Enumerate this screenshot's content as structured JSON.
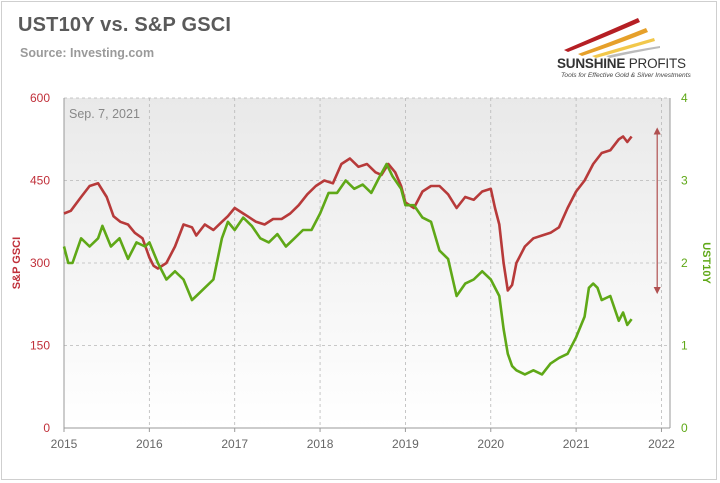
{
  "header": {
    "title": "UST10Y vs. S&P GSCI",
    "source": "Source: Investing.com",
    "logo_name_bold": "SUNSHINE",
    "logo_name_light": " PROFITS",
    "logo_tagline": "Tools for Effective Gold & Silver Investments"
  },
  "colors": {
    "gsci": "#b73a3a",
    "ust10y": "#5fa817",
    "arrow": "#b05050",
    "grid": "#b8b8b8",
    "left_axis_text": "#c0303a",
    "right_axis_text": "#5fa817"
  },
  "chart_data": {
    "type": "line",
    "annotation": "Sep. 7, 2021",
    "xlabel": "",
    "x_ticks": [
      "2015",
      "2016",
      "2017",
      "2018",
      "2019",
      "2020",
      "2021",
      "2022"
    ],
    "xlim": [
      2015,
      2022.1
    ],
    "y_left": {
      "label": "S&P GSCI",
      "ticks": [
        "0",
        "150",
        "300",
        "450",
        "600"
      ],
      "ylim": [
        0,
        600
      ]
    },
    "y_right": {
      "label": "UST10Y",
      "ticks": [
        "0",
        "1",
        "2",
        "3",
        "4"
      ],
      "ylim": [
        0,
        4
      ]
    },
    "grid": true,
    "arrow": {
      "x": 2021.95,
      "from": 540,
      "to": 250
    },
    "series": [
      {
        "name": "S&P GSCI",
        "axis": "left",
        "x": [
          2015.0,
          2015.08,
          2015.2,
          2015.3,
          2015.4,
          2015.5,
          2015.58,
          2015.66,
          2015.75,
          2015.83,
          2015.92,
          2016.0,
          2016.05,
          2016.1,
          2016.2,
          2016.3,
          2016.4,
          2016.5,
          2016.55,
          2016.65,
          2016.75,
          2016.85,
          2016.92,
          2017.0,
          2017.1,
          2017.15,
          2017.25,
          2017.35,
          2017.45,
          2017.55,
          2017.65,
          2017.75,
          2017.85,
          2017.95,
          2018.05,
          2018.15,
          2018.25,
          2018.35,
          2018.45,
          2018.55,
          2018.65,
          2018.72,
          2018.8,
          2018.88,
          2018.95,
          2019.0,
          2019.1,
          2019.2,
          2019.3,
          2019.4,
          2019.5,
          2019.6,
          2019.7,
          2019.8,
          2019.9,
          2020.0,
          2020.05,
          2020.1,
          2020.15,
          2020.2,
          2020.25,
          2020.3,
          2020.4,
          2020.5,
          2020.6,
          2020.7,
          2020.8,
          2020.9,
          2021.0,
          2021.1,
          2021.2,
          2021.3,
          2021.4,
          2021.5,
          2021.55,
          2021.6,
          2021.65
        ],
        "values": [
          390,
          395,
          420,
          440,
          445,
          420,
          385,
          375,
          370,
          355,
          345,
          310,
          295,
          290,
          300,
          330,
          370,
          365,
          350,
          370,
          360,
          375,
          385,
          400,
          390,
          385,
          375,
          370,
          380,
          380,
          390,
          405,
          425,
          440,
          450,
          445,
          480,
          490,
          475,
          480,
          465,
          460,
          480,
          465,
          440,
          410,
          400,
          430,
          440,
          440,
          425,
          400,
          420,
          415,
          430,
          435,
          400,
          370,
          300,
          250,
          260,
          300,
          330,
          345,
          350,
          355,
          365,
          400,
          430,
          450,
          480,
          500,
          505,
          525,
          530,
          520,
          530
        ]
      },
      {
        "name": "UST10Y",
        "axis": "right",
        "x": [
          2015.0,
          2015.05,
          2015.1,
          2015.2,
          2015.3,
          2015.4,
          2015.45,
          2015.55,
          2015.65,
          2015.75,
          2015.85,
          2015.95,
          2016.0,
          2016.1,
          2016.2,
          2016.3,
          2016.4,
          2016.5,
          2016.55,
          2016.65,
          2016.75,
          2016.85,
          2016.92,
          2017.0,
          2017.1,
          2017.2,
          2017.3,
          2017.4,
          2017.5,
          2017.6,
          2017.7,
          2017.8,
          2017.9,
          2018.0,
          2018.1,
          2018.2,
          2018.3,
          2018.4,
          2018.5,
          2018.6,
          2018.7,
          2018.78,
          2018.85,
          2018.95,
          2019.0,
          2019.1,
          2019.2,
          2019.3,
          2019.4,
          2019.5,
          2019.6,
          2019.7,
          2019.8,
          2019.9,
          2020.0,
          2020.1,
          2020.15,
          2020.2,
          2020.25,
          2020.3,
          2020.4,
          2020.5,
          2020.6,
          2020.7,
          2020.8,
          2020.9,
          2021.0,
          2021.1,
          2021.15,
          2021.2,
          2021.25,
          2021.3,
          2021.4,
          2021.5,
          2021.55,
          2021.6,
          2021.65
        ],
        "values": [
          2.2,
          2.0,
          2.0,
          2.3,
          2.2,
          2.3,
          2.45,
          2.2,
          2.3,
          2.05,
          2.25,
          2.2,
          2.25,
          2.0,
          1.8,
          1.9,
          1.8,
          1.55,
          1.6,
          1.7,
          1.8,
          2.3,
          2.5,
          2.4,
          2.55,
          2.45,
          2.3,
          2.25,
          2.35,
          2.2,
          2.3,
          2.4,
          2.4,
          2.6,
          2.85,
          2.85,
          3.0,
          2.9,
          2.95,
          2.85,
          3.05,
          3.2,
          3.05,
          2.9,
          2.7,
          2.7,
          2.55,
          2.5,
          2.15,
          2.05,
          1.6,
          1.75,
          1.8,
          1.9,
          1.8,
          1.6,
          1.2,
          0.9,
          0.75,
          0.7,
          0.65,
          0.7,
          0.65,
          0.78,
          0.85,
          0.9,
          1.1,
          1.35,
          1.7,
          1.75,
          1.7,
          1.55,
          1.6,
          1.3,
          1.4,
          1.25,
          1.32
        ]
      }
    ]
  }
}
